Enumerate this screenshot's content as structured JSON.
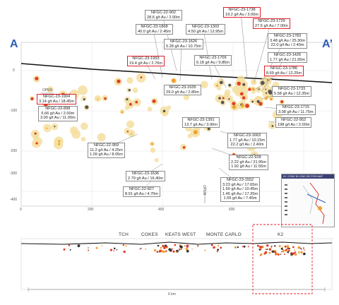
{
  "sections": {
    "left": "A",
    "right": "A’"
  },
  "open_labels": [
    "OPEN",
    "OPEN"
  ],
  "y_ticks": [
    "0",
    "-100",
    "-200",
    "-300",
    "-400"
  ],
  "x_ticks": [
    "0",
    "200",
    "400",
    "600",
    "800"
  ],
  "drill_labels": [
    {
      "hole": "NFGC-22-902",
      "vals": [
        "28.6 g/t Au / 2.00m"
      ],
      "red": false
    },
    {
      "hole": "NFGC-23-1738",
      "vals": [
        "19.2 g/t Au / 3.00m"
      ],
      "red": true
    },
    {
      "hole": "NFGC-23-1868",
      "vals": [
        "40.0 g/t Au / 2.45m"
      ],
      "red": false
    },
    {
      "hole": "NFGC-23-1303",
      "vals": [
        "4.50 g/t Au / 12.95m"
      ],
      "red": false
    },
    {
      "hole": "NFGC-23-1729",
      "vals": [
        "27.5 g/t Au / 7.00m"
      ],
      "red": true
    },
    {
      "hole": "NFGC-23-1626",
      "vals": [
        "5.28 g/t Au / 10.75m"
      ],
      "red": false
    },
    {
      "hole": "NFGC-23-1783",
      "vals": [
        "3.48 g/t Au / 25.30m",
        "22.0 g/t Au / 2.40m"
      ],
      "red": false
    },
    {
      "hole": "NFGC-23-1993",
      "vals": [
        "19.4 g/t Au / 2.70m"
      ],
      "red": true
    },
    {
      "hole": "NFGC-23-1709",
      "vals": [
        "6.18 g/t Au / 9.85m"
      ],
      "red": false
    },
    {
      "hole": "NFGC-23-1426",
      "vals": [
        "1.77 g/t Au / 21.95m"
      ],
      "red": false
    },
    {
      "hole": "NFGC-23-1786",
      "vals": [
        "8.69 g/t Au / 12.25m"
      ],
      "red": true
    },
    {
      "hole": "NFGC-23-1904",
      "vals": [
        "3.14 g/t Au / 18.45m"
      ],
      "red": true
    },
    {
      "hole": "NFGC-23-1635",
      "vals": [
        "29.0 g/t Au / 2.85m"
      ],
      "red": false
    },
    {
      "hole": "NFGC-23-1733",
      "vals": [
        "5.58 g/t Au / 12.35m"
      ],
      "red": false
    },
    {
      "hole": "NFGC-22-898",
      "vals": [
        "6.66 g/t Au / 2.00m",
        "3.00 g/t Au / 11.00m"
      ],
      "red": false
    },
    {
      "hole": "NFGC-23-1391",
      "vals": [
        "13.7 g/t Au / 3.90m"
      ],
      "red": false
    },
    {
      "hole": "NFGC-23-1715",
      "vals": [
        "3.08 g/t Au / 11.75m"
      ],
      "red": false
    },
    {
      "hole": "NFGC-22-952",
      "vals": [
        "198 g/t Au / 2.00m"
      ],
      "red": false
    },
    {
      "hole": "NFGC-22-959",
      "vals": [
        "11.2 g/t Au / 4.25m",
        "1.09 g/t Au / 8.05m"
      ],
      "red": false
    },
    {
      "hole": "NFGC-23-1663",
      "vals": [
        "1.77 g/t Au / 10.15m",
        "22.2 g/t Au / 2.40m"
      ],
      "red": false
    },
    {
      "hole": "NFGC-22-928",
      "vals": [
        "2.22 g/t Au / 21.95m",
        "1.92 g/t Au / 11.55m"
      ],
      "red": false
    },
    {
      "hole": "NFGC-23-1636",
      "vals": [
        "2.79 g/t Au / 16.40m"
      ],
      "red": false
    },
    {
      "hole": "NFGC-22-827",
      "vals": [
        "8.91 g/t Au / 4.70m"
      ],
      "red": false
    },
    {
      "hole": "NFGC-23-1552",
      "vals": [
        "3.23 g/t Au / 17.65m",
        "1.60 g/t Au / 10.45m",
        "1.45 g/t Au / 17.25m",
        "1.55 g/t Au / 7.45m"
      ],
      "red": false
    }
  ],
  "legend_title": "K2 / ZONE 36 LONG SECTION MAP",
  "areas": [
    "TCH",
    "COKES",
    "KEATS WEST",
    "MONTE CARLO",
    "K2"
  ],
  "scale_label": "6 km",
  "colors": {
    "section_marker": "#2f5cb7",
    "highlight_box": "#e0202a",
    "halo": "#f5dfa0",
    "grade_high": "#e0402a",
    "grade_mid": "#f0a030"
  }
}
